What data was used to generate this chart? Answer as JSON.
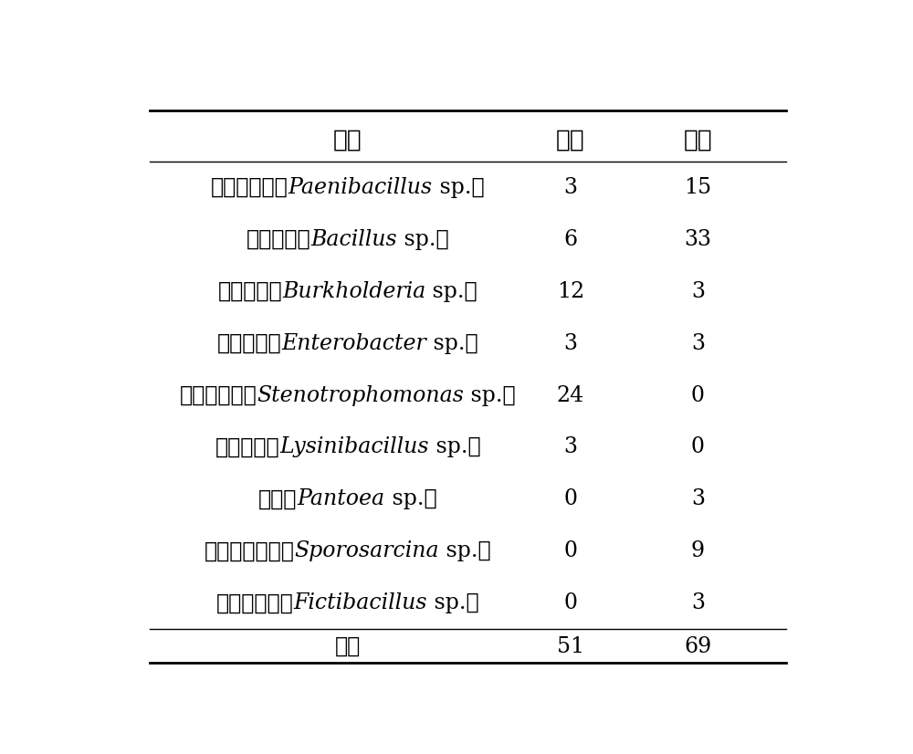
{
  "header": [
    "菌株",
    "连作",
    "轮作"
  ],
  "rows": [
    {
      "chinese": "类芽孢杆菌",
      "prefix": "（",
      "latin": "Paenibacillus",
      "suffix": " sp.）",
      "lianzhuo": "3",
      "lunzuo": "15"
    },
    {
      "chinese": "芽孢杆菌",
      "prefix": "（",
      "latin": "Bacillus",
      "suffix": " sp.）",
      "lianzhuo": "6",
      "lunzuo": "33"
    },
    {
      "chinese": "伯克氏菌",
      "prefix": "（",
      "latin": "Burkholderia",
      "suffix": " sp.）",
      "lianzhuo": "12",
      "lunzuo": "3"
    },
    {
      "chinese": "肠杆菌属",
      "prefix": "（",
      "latin": "Enterobacter",
      "suffix": " sp.）",
      "lianzhuo": "3",
      "lunzuo": "3"
    },
    {
      "chinese": "寡养单胞菌",
      "prefix": "（",
      "latin": "Stenotrophomonas",
      "suffix": " sp.）",
      "lianzhuo": "24",
      "lunzuo": "0"
    },
    {
      "chinese": "芽孢杆菌",
      "prefix": "（",
      "latin": "Lysinibacillus",
      "suffix": " sp.）",
      "lianzhuo": "3",
      "lunzuo": "0"
    },
    {
      "chinese": "泛菌",
      "prefix": "（",
      "latin": "Pantoea",
      "suffix": " sp.）",
      "lianzhuo": "0",
      "lunzuo": "3"
    },
    {
      "chinese": "芽袍八叠球菌",
      "prefix": "（",
      "latin": "Sporosarcina",
      "suffix": " sp.）",
      "lianzhuo": "0",
      "lunzuo": "9"
    },
    {
      "chinese": "假芽孢杆菌",
      "prefix": "（",
      "latin": "Fictibacillus",
      "suffix": " sp.）",
      "lianzhuo": "0",
      "lunzuo": "3"
    }
  ],
  "footer": {
    "label": "合计",
    "lianzhuo": "51",
    "lunzuo": "69"
  },
  "bg_color": "#ffffff",
  "text_color": "#000000",
  "line_color": "#000000",
  "fig_width": 10.0,
  "fig_height": 8.26,
  "dpi": 100
}
